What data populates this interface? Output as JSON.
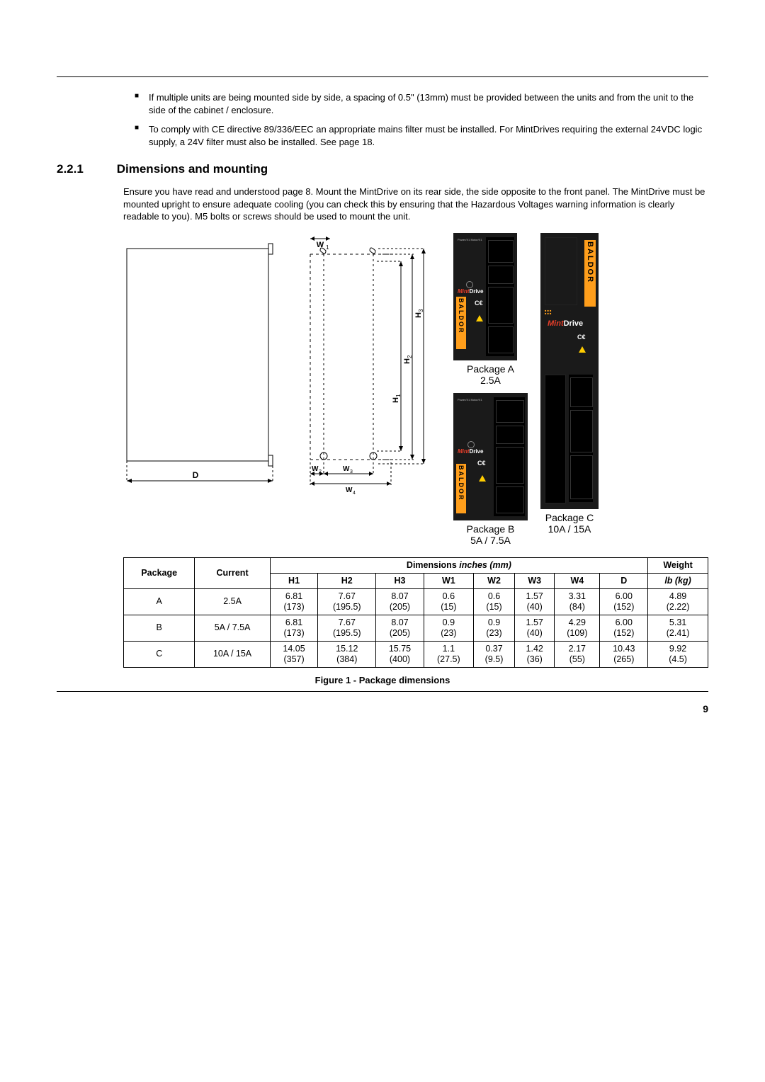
{
  "bullets": [
    "If multiple units are being mounted side by side, a spacing of 0.5\" (13mm) must be provided between the units and from the unit to the side of the cabinet / enclosure.",
    "To comply with CE directive 89/336/EEC an appropriate mains filter must be installed. For MintDrives requiring the external 24VDC logic supply, a 24V filter must also be installed. See page 18."
  ],
  "section": {
    "num": "2.2.1",
    "title": "Dimensions and mounting"
  },
  "para": "Ensure you have read and understood page 8. Mount the MintDrive on its rear side, the side opposite to the front panel.  The MintDrive must be mounted upright to ensure adequate cooling (you can check this by ensuring that the Hazardous Voltages warning information is clearly readable to you). M5 bolts or screws should be used to mount the unit.",
  "diagram": {
    "labels": {
      "D": "D",
      "W1": "W₁",
      "W2": "W₂",
      "W3": "W₃",
      "W4": "W₄",
      "H1": "H₁",
      "H2": "H₂",
      "H3": "H₃"
    },
    "colors": {
      "line": "#000",
      "dash": "#000",
      "bg": "#fff",
      "baldor_bg": "#ff9e1b",
      "mint_red": "#e83e2a",
      "unit_bg": "#1a1a1a"
    }
  },
  "packages": {
    "A": {
      "label": "Package   A",
      "current": "2.5A"
    },
    "B": {
      "label": "Package   B",
      "current": "5A / 7.5A"
    },
    "C": {
      "label": "Package   C",
      "current": "10A / 15A"
    }
  },
  "table": {
    "header_group": {
      "dims": "Dimensions",
      "dims_em": "inches (mm)",
      "weight": "Weight"
    },
    "columns": [
      "Package",
      "Current",
      "H1",
      "H2",
      "H3",
      "W1",
      "W2",
      "W3",
      "W4",
      "D",
      "lb (kg)"
    ],
    "col_em": {
      "10": true
    },
    "rows": [
      [
        "A",
        "2.5A",
        "6.81\n(173)",
        "7.67\n(195.5)",
        "8.07\n(205)",
        "0.6\n(15)",
        "0.6\n(15)",
        "1.57\n(40)",
        "3.31\n(84)",
        "6.00\n(152)",
        "4.89\n(2.22)"
      ],
      [
        "B",
        "5A / 7.5A",
        "6.81\n(173)",
        "7.67\n(195.5)",
        "8.07\n(205)",
        "0.9\n(23)",
        "0.9\n(23)",
        "1.57\n(40)",
        "4.29\n(109)",
        "6.00\n(152)",
        "5.31\n(2.41)"
      ],
      [
        "C",
        "10A / 15A",
        "14.05\n(357)",
        "15.12\n(384)",
        "15.75\n(400)",
        "1.1\n(27.5)",
        "0.37\n(9.5)",
        "1.42\n(36)",
        "2.17\n(55)",
        "10.43\n(265)",
        "9.92\n(4.5)"
      ]
    ]
  },
  "figure_caption": "Figure 1 - Package dimensions",
  "page_number": "9"
}
